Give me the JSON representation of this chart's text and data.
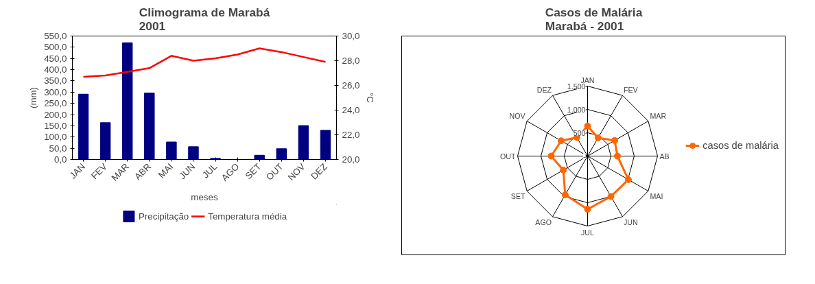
{
  "chart_data": [
    {
      "type": "bar",
      "title": "Climograma de Marabá",
      "subtitle": "2001",
      "xlabel": "meses",
      "ylabel": "(mm)",
      "y2label": "°C",
      "categories": [
        "JAN",
        "FEV",
        "MAR",
        "ABR",
        "MAI",
        "JUN",
        "JUL",
        "AGO",
        "SET",
        "OUT",
        "NOV",
        "DEZ"
      ],
      "series": [
        {
          "name": "Precipitação",
          "type": "bar",
          "color": "#000080",
          "values": [
            291,
            164,
            520,
            296,
            78,
            57,
            5,
            0,
            19,
            48,
            151,
            130
          ]
        },
        {
          "name": "Temperatura média",
          "type": "line",
          "axis": "y2",
          "color": "#ff0000",
          "values": [
            26.7,
            26.8,
            27.1,
            27.4,
            28.4,
            28.0,
            28.2,
            28.5,
            29.0,
            28.7,
            28.3,
            27.9
          ]
        }
      ],
      "ylim": [
        0,
        550
      ],
      "yticks": [
        {
          "value": 0,
          "label": "0,0"
        },
        {
          "value": 50,
          "label": "50,0"
        },
        {
          "value": 100,
          "label": "100,0"
        },
        {
          "value": 150,
          "label": "150,0"
        },
        {
          "value": 200,
          "label": "200,0"
        },
        {
          "value": 250,
          "label": "250,0"
        },
        {
          "value": 300,
          "label": "300,0"
        },
        {
          "value": 350,
          "label": "350,0"
        },
        {
          "value": 400,
          "label": "400,0"
        },
        {
          "value": 450,
          "label": "450,0"
        },
        {
          "value": 500,
          "label": "500,0"
        },
        {
          "value": 550,
          "label": "550,0"
        }
      ],
      "y2lim": [
        20,
        30
      ],
      "y2ticks": [
        {
          "value": 20,
          "label": "20,0"
        },
        {
          "value": 22,
          "label": "22,0"
        },
        {
          "value": 24,
          "label": "24,0"
        },
        {
          "value": 26,
          "label": "26,0"
        },
        {
          "value": 28,
          "label": "28,0"
        },
        {
          "value": 30,
          "label": "30,0"
        }
      ],
      "legend": "bottom",
      "grid": false
    },
    {
      "type": "radar",
      "title": "Casos de Malária",
      "subtitle": "Marabá - 2001",
      "categories": [
        "JAN",
        "FEV",
        "MAR",
        "AB",
        "MAI",
        "JUN",
        "JUL",
        "AGO",
        "SET",
        "OUT",
        "NOV",
        "DEZ"
      ],
      "series": [
        {
          "name": "casos de malária",
          "color": "#ff6600",
          "values": [
            645,
            450,
            670,
            640,
            1010,
            1000,
            1140,
            960,
            600,
            780,
            655,
            460
          ]
        }
      ],
      "ylim": [
        0,
        1500
      ],
      "yticks": [
        {
          "value": 0,
          "label": "-"
        },
        {
          "value": 500,
          "label": "500"
        },
        {
          "value": 1000,
          "label": "1.000"
        },
        {
          "value": 1500,
          "label": "1.500"
        }
      ],
      "legend": "right",
      "marker": "circle",
      "grid": true
    }
  ]
}
